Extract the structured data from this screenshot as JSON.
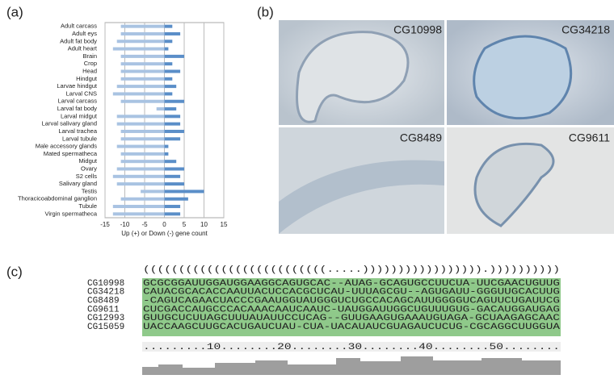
{
  "chart_data": {
    "type": "bar",
    "orientation": "horizontal",
    "xlabel": "Up (+) or Down (-) gene count",
    "categories": [
      "Adult carcass",
      "Adult eys",
      "Adult fat body",
      "Adult heart",
      "Brain",
      "Crop",
      "Head",
      "Hindgut",
      "Larvae hindgut",
      "Larval CNS",
      "Larval carcass",
      "Larval fat body",
      "Larval midgut",
      "Larval salivary gland",
      "Larval trachea",
      "Larval tubule",
      "Male accessory glands",
      "Mated spermatheca",
      "Midgut",
      "Ovary",
      "S2 cells",
      "Salivary gland",
      "Testis",
      "Thoracicoabdominal ganglion",
      "Tubule",
      "Virgin spermatheca"
    ],
    "series": [
      {
        "color": "#a9c3e2",
        "values": [
          -11,
          -11,
          -12,
          -13,
          -11,
          -11,
          -11,
          -11,
          -12,
          -13,
          -11,
          -2,
          -12,
          -12,
          -11,
          -11,
          -12,
          -11,
          -11,
          -12,
          -13,
          -12,
          -6,
          -11,
          -13,
          -13
        ]
      },
      {
        "color": "#5a8ec8",
        "values": [
          2,
          4,
          2,
          1,
          5,
          2,
          4,
          2,
          3,
          2,
          5,
          3,
          4,
          4,
          5,
          4,
          1,
          1,
          3,
          5,
          4,
          5,
          10,
          6,
          4,
          4
        ]
      }
    ],
    "xlim": [
      -15,
      15
    ],
    "xticks": [
      -15,
      -10,
      -5,
      0,
      5,
      10,
      15
    ],
    "grid": true
  },
  "panels": {
    "a": "(a)",
    "b": "(b)",
    "c": "(c)"
  },
  "images": [
    "CG10998",
    "CG34218",
    "CG8489",
    "CG9611"
  ],
  "alignment": {
    "structure": "((((((((((((((((((((((((((.....))))))))))))))))).))))))))))",
    "rows": [
      {
        "name": "CG10998",
        "sequence": "GCGCGGAUUGGAUGGAAGGCAGUGCAC--AUAG-GCAGUGCCUUCUA-UUCGAACUGUUG"
      },
      {
        "name": "CG34218",
        "sequence": "CAUACGCACACCAAUUACUCCACGCUCAU-UUUAGCGU--AGUGAUU-GGGUUGCACUUG"
      },
      {
        "name": "CG8489",
        "sequence": "-CAGUCAGAACUACCCGAAUGGUAUGGGUCUGCCACAGCAUUGGGGUCAGUUCUGAUUCG"
      },
      {
        "name": "CG9611",
        "sequence": "CUCGACCAUGCCCACAAACAAUCAAUC-UAUGGAUUGGCUGUUUGUG-GACAUGGAUGAG"
      },
      {
        "name": "CG12993",
        "sequence": "GUUGCUCUUAGCUUUAUAUUCCUCAG--GUUGAAGUGAAAUGUAGA-GCUAAGAGCAAC"
      },
      {
        "name": "CG15059",
        "sequence": "UACCAAGCUUGCACUGAUCUAU-CUA-UACAUAUCGUAGAUCUCUG-CGCAGGCUUGGUA"
      }
    ],
    "ruler": ".........10........20........30........40........50........"
  }
}
